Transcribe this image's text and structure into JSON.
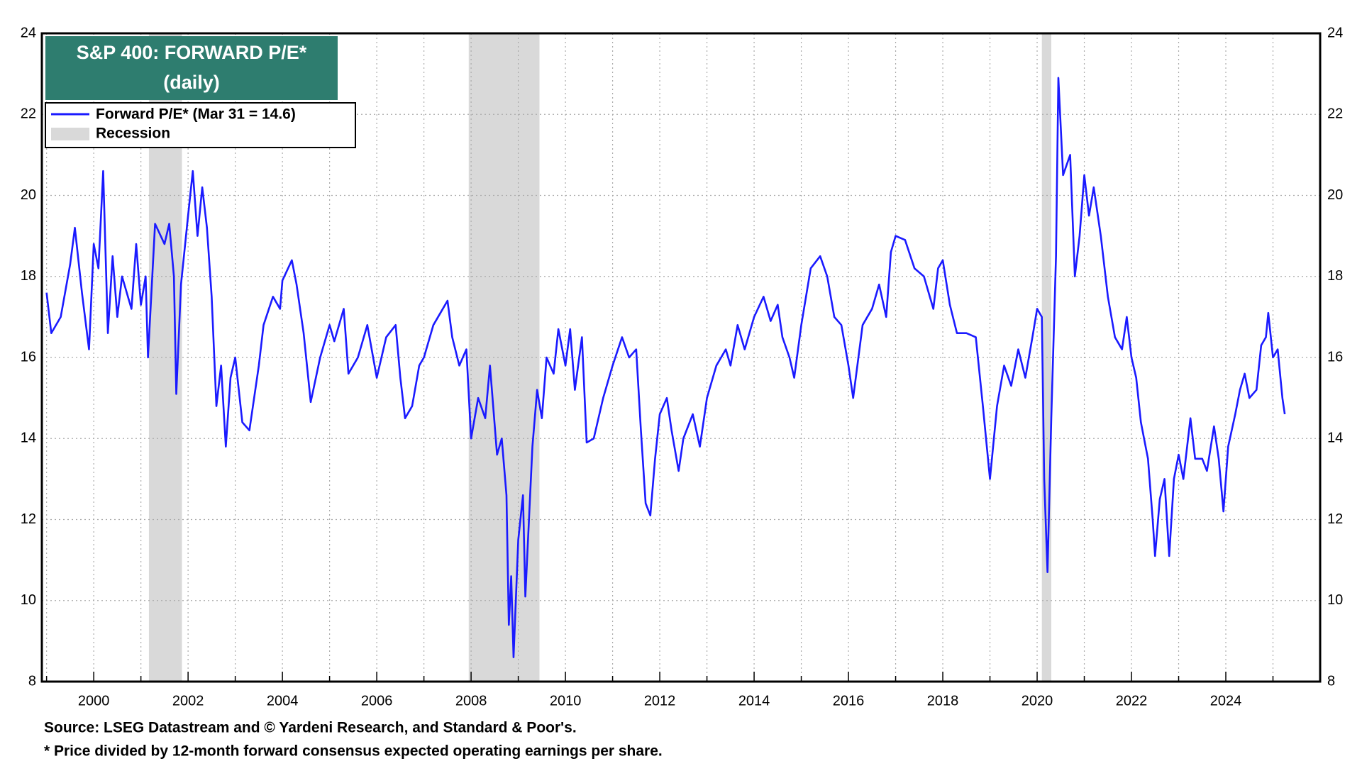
{
  "chart_data": {
    "type": "line",
    "title": "S&P 400: FORWARD P/E*",
    "subtitle": "(daily)",
    "notes": [
      "Source: LSEG Datastream and © Yardeni Research, and Standard & Poor's.",
      "* Price divided by 12-month forward consensus expected operating earnings per share."
    ],
    "xlim": [
      1998.9,
      2026.0
    ],
    "xticks": [
      2000,
      2002,
      2004,
      2006,
      2008,
      2010,
      2012,
      2014,
      2016,
      2018,
      2020,
      2022,
      2024
    ],
    "xminor_ticks": [
      1999,
      2001,
      2003,
      2005,
      2007,
      2009,
      2011,
      2013,
      2015,
      2017,
      2019,
      2021,
      2023,
      2025
    ],
    "ylim": [
      8,
      24
    ],
    "yticks": [
      8,
      10,
      12,
      14,
      16,
      18,
      20,
      22,
      24
    ],
    "grid": true,
    "legend": "upper left",
    "recession_name": "Recession",
    "recession_color": "#d9d9d9",
    "recessions": [
      [
        2001.17,
        2001.87
      ],
      [
        2007.95,
        2009.45
      ],
      [
        2020.1,
        2020.3
      ]
    ],
    "x": [
      1999.0,
      1999.1,
      1999.3,
      1999.5,
      1999.6,
      1999.75,
      1999.9,
      2000.0,
      2000.1,
      2000.2,
      2000.3,
      2000.4,
      2000.5,
      2000.6,
      2000.8,
      2000.9,
      2001.0,
      2001.1,
      2001.15,
      2001.3,
      2001.5,
      2001.6,
      2001.7,
      2001.75,
      2001.85,
      2002.0,
      2002.1,
      2002.2,
      2002.3,
      2002.4,
      2002.5,
      2002.6,
      2002.7,
      2002.8,
      2002.9,
      2003.0,
      2003.15,
      2003.3,
      2003.5,
      2003.6,
      2003.8,
      2003.95,
      2004.0,
      2004.2,
      2004.3,
      2004.45,
      2004.6,
      2004.8,
      2005.0,
      2005.1,
      2005.3,
      2005.4,
      2005.6,
      2005.8,
      2006.0,
      2006.2,
      2006.4,
      2006.5,
      2006.6,
      2006.75,
      2006.9,
      2007.0,
      2007.2,
      2007.4,
      2007.5,
      2007.6,
      2007.75,
      2007.9,
      2008.0,
      2008.15,
      2008.3,
      2008.4,
      2008.55,
      2008.65,
      2008.75,
      2008.8,
      2008.85,
      2008.9,
      2009.0,
      2009.1,
      2009.15,
      2009.3,
      2009.4,
      2009.5,
      2009.6,
      2009.75,
      2009.85,
      2010.0,
      2010.1,
      2010.2,
      2010.35,
      2010.45,
      2010.6,
      2010.8,
      2011.0,
      2011.2,
      2011.35,
      2011.5,
      2011.6,
      2011.7,
      2011.8,
      2011.9,
      2012.0,
      2012.15,
      2012.25,
      2012.4,
      2012.5,
      2012.7,
      2012.85,
      2013.0,
      2013.2,
      2013.4,
      2013.5,
      2013.65,
      2013.8,
      2014.0,
      2014.2,
      2014.35,
      2014.5,
      2014.6,
      2014.75,
      2014.85,
      2015.0,
      2015.2,
      2015.4,
      2015.55,
      2015.7,
      2015.85,
      2016.0,
      2016.1,
      2016.3,
      2016.5,
      2016.65,
      2016.8,
      2016.9,
      2017.0,
      2017.2,
      2017.4,
      2017.6,
      2017.8,
      2017.9,
      2018.0,
      2018.15,
      2018.3,
      2018.5,
      2018.7,
      2018.85,
      2019.0,
      2019.15,
      2019.3,
      2019.45,
      2019.6,
      2019.75,
      2019.9,
      2020.0,
      2020.1,
      2020.15,
      2020.22,
      2020.3,
      2020.4,
      2020.45,
      2020.55,
      2020.7,
      2020.8,
      2020.9,
      2021.0,
      2021.1,
      2021.2,
      2021.35,
      2021.5,
      2021.65,
      2021.8,
      2021.9,
      2022.0,
      2022.1,
      2022.2,
      2022.35,
      2022.45,
      2022.5,
      2022.6,
      2022.7,
      2022.8,
      2022.9,
      2023.0,
      2023.1,
      2023.25,
      2023.35,
      2023.5,
      2023.6,
      2023.75,
      2023.85,
      2023.95,
      2024.05,
      2024.2,
      2024.3,
      2024.4,
      2024.5,
      2024.65,
      2024.75,
      2024.85,
      2024.9,
      2025.0,
      2025.1,
      2025.2,
      2025.25
    ],
    "series": [
      {
        "name": "Forward P/E* (Mar 31 = 14.6)",
        "color": "#1a1aff",
        "values": [
          17.6,
          16.6,
          17.0,
          18.3,
          19.2,
          17.6,
          16.2,
          18.8,
          18.2,
          20.6,
          16.6,
          18.5,
          17.0,
          18.0,
          17.2,
          18.8,
          17.3,
          18.0,
          16.0,
          19.3,
          18.8,
          19.3,
          18.0,
          15.1,
          17.8,
          19.5,
          20.6,
          19.0,
          20.2,
          19.2,
          17.5,
          14.8,
          15.8,
          13.8,
          15.5,
          16.0,
          14.4,
          14.2,
          15.8,
          16.8,
          17.5,
          17.2,
          17.9,
          18.4,
          17.8,
          16.6,
          14.9,
          16.0,
          16.8,
          16.4,
          17.2,
          15.6,
          16.0,
          16.8,
          15.5,
          16.5,
          16.8,
          15.5,
          14.5,
          14.8,
          15.8,
          16.0,
          16.8,
          17.2,
          17.4,
          16.5,
          15.8,
          16.2,
          14.0,
          15.0,
          14.5,
          15.8,
          13.6,
          14.0,
          12.6,
          9.4,
          10.6,
          8.6,
          11.5,
          12.6,
          10.1,
          13.8,
          15.2,
          14.5,
          16.0,
          15.6,
          16.7,
          15.8,
          16.7,
          15.2,
          16.5,
          13.9,
          14.0,
          15.0,
          15.8,
          16.5,
          16.0,
          16.2,
          14.2,
          12.4,
          12.1,
          13.5,
          14.6,
          15.0,
          14.2,
          13.2,
          14.0,
          14.6,
          13.8,
          15.0,
          15.8,
          16.2,
          15.8,
          16.8,
          16.2,
          17.0,
          17.5,
          16.9,
          17.3,
          16.5,
          16.0,
          15.5,
          16.8,
          18.2,
          18.5,
          18.0,
          17.0,
          16.8,
          15.8,
          15.0,
          16.8,
          17.2,
          17.8,
          17.0,
          18.6,
          19.0,
          18.9,
          18.2,
          18.0,
          17.2,
          18.2,
          18.4,
          17.3,
          16.6,
          16.6,
          16.5,
          14.8,
          13.0,
          14.8,
          15.8,
          15.3,
          16.2,
          15.5,
          16.5,
          17.2,
          17.0,
          13.0,
          10.7,
          14.5,
          18.5,
          22.9,
          20.5,
          21.0,
          18.0,
          19.0,
          20.5,
          19.5,
          20.2,
          19.0,
          17.5,
          16.5,
          16.2,
          17.0,
          16.0,
          15.5,
          14.4,
          13.5,
          12.0,
          11.1,
          12.5,
          13.0,
          11.1,
          13.0,
          13.6,
          13.0,
          14.5,
          13.5,
          13.5,
          13.2,
          14.3,
          13.5,
          12.2,
          13.8,
          14.6,
          15.2,
          15.6,
          15.0,
          15.2,
          16.3,
          16.5,
          17.1,
          16.0,
          16.2,
          15.0,
          14.6
        ]
      }
    ]
  }
}
